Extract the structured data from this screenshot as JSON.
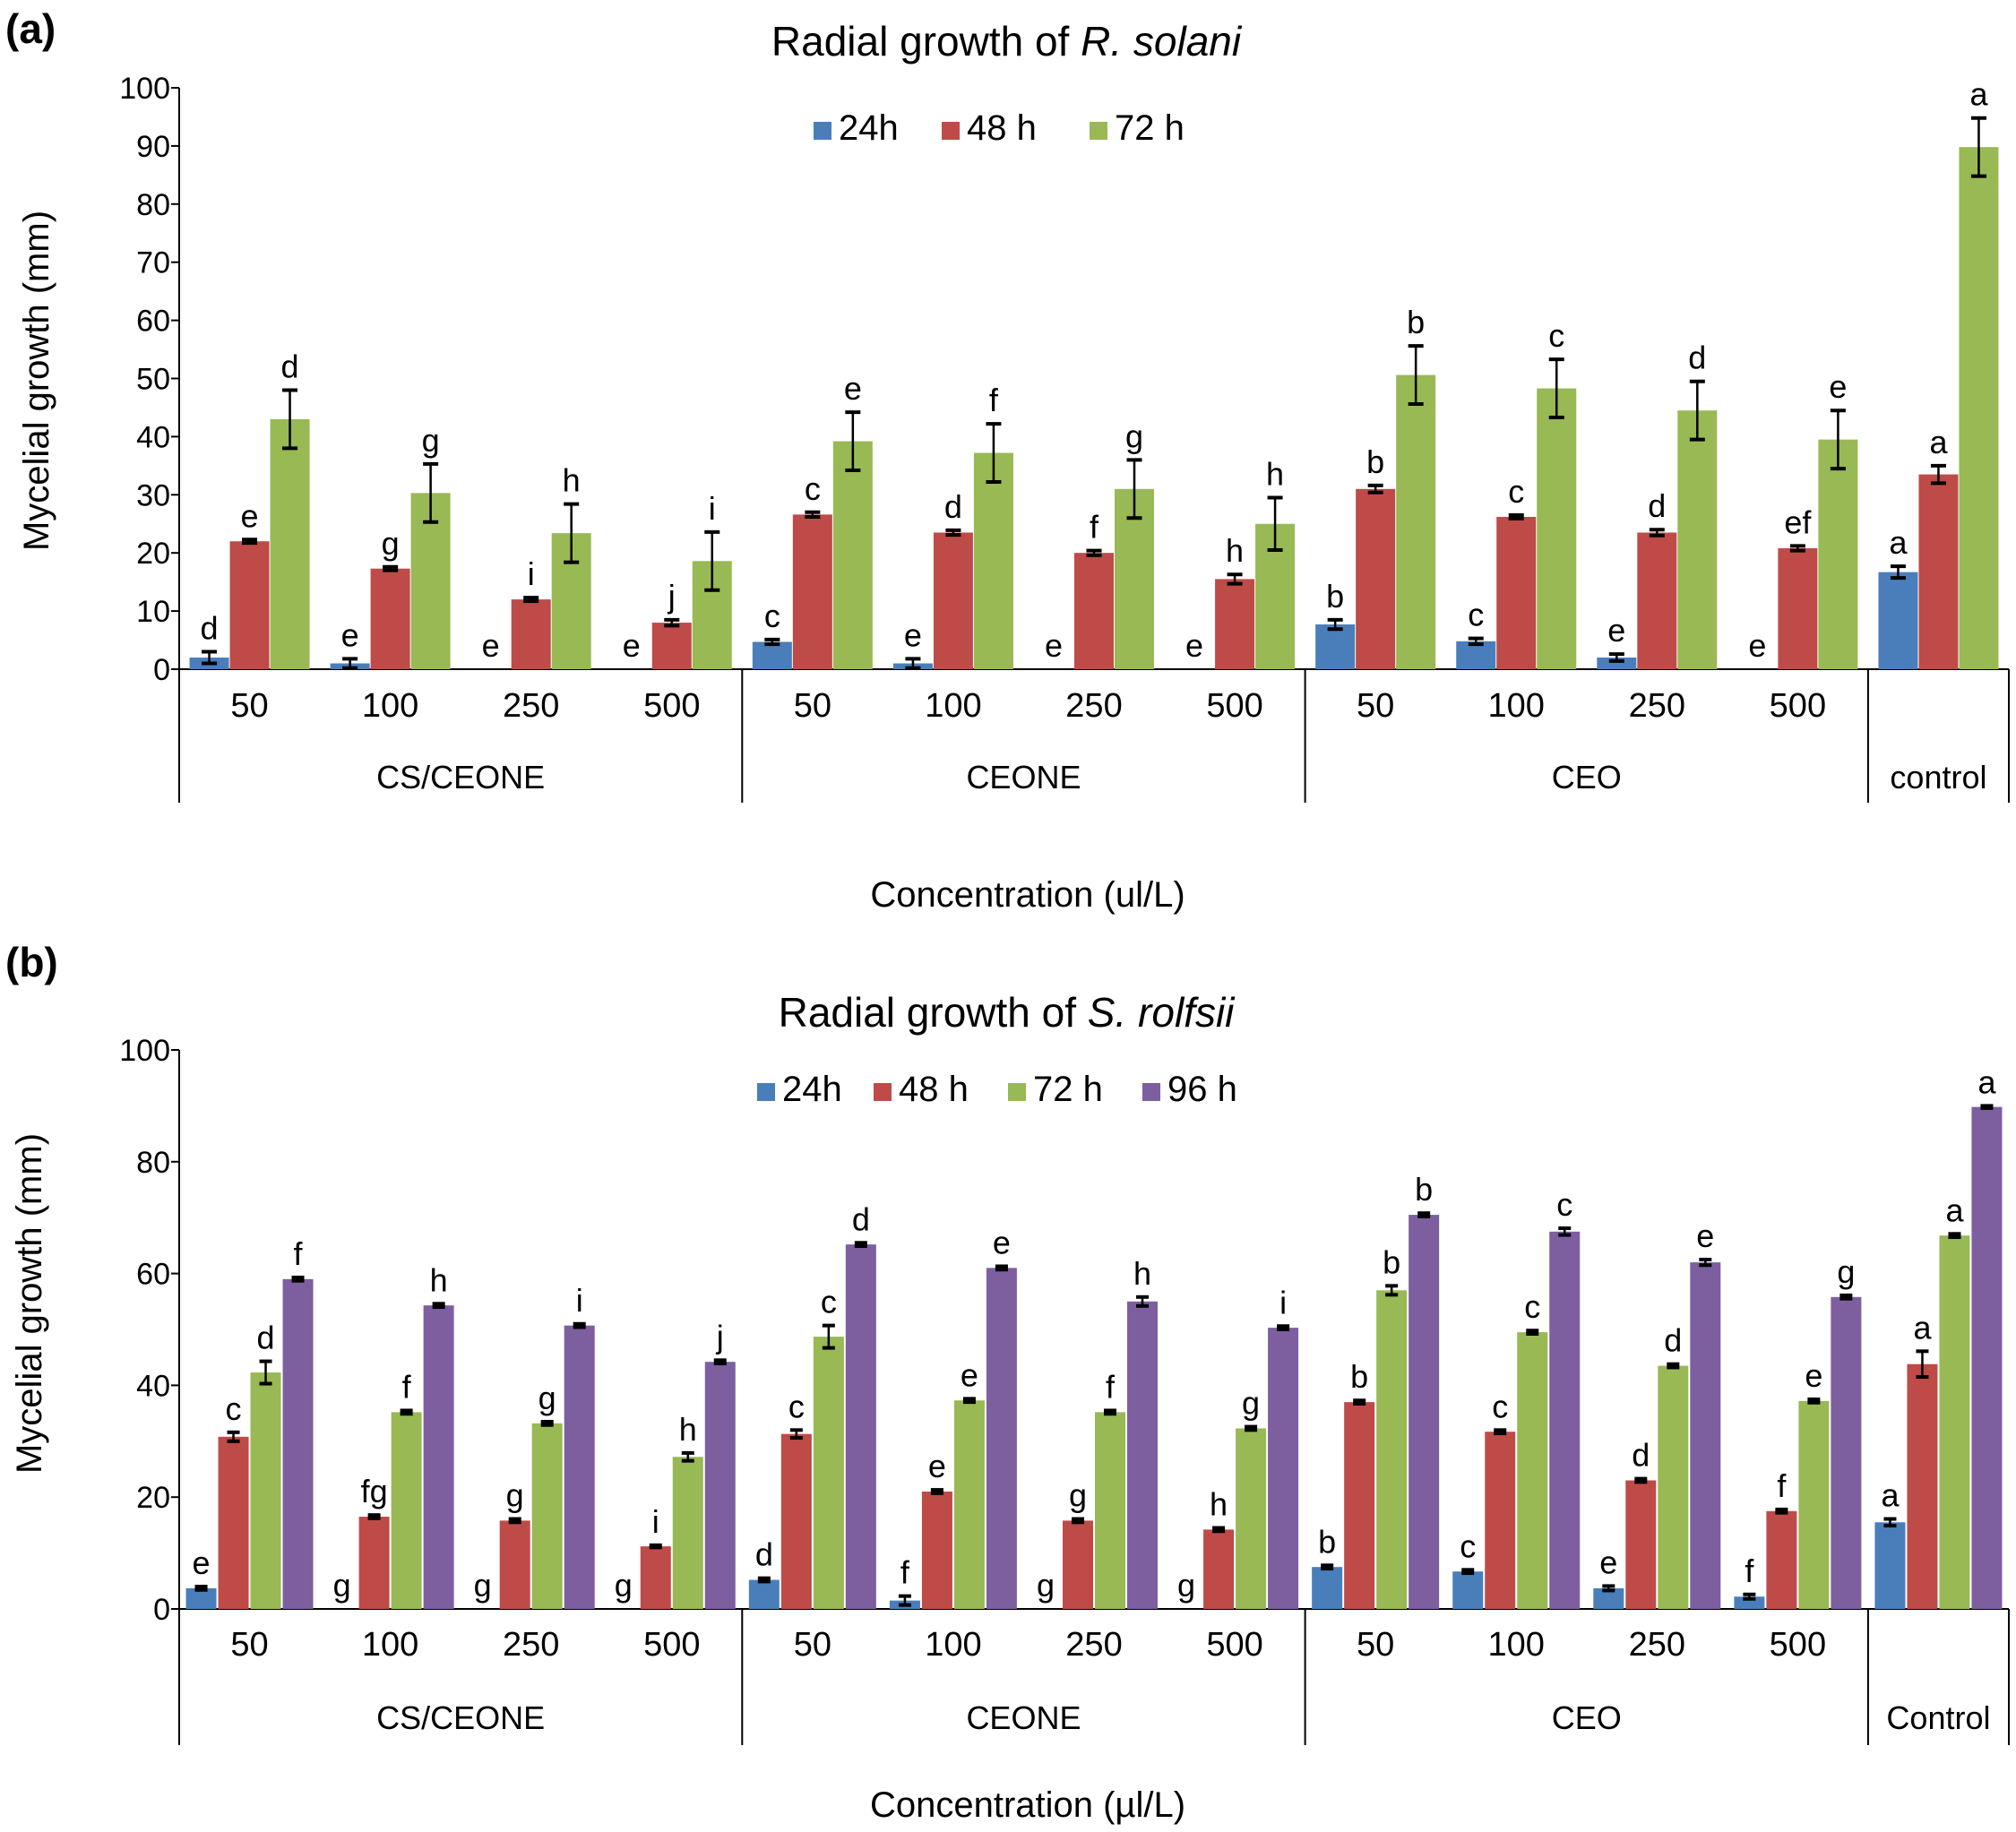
{
  "figure": {
    "panels": [
      {
        "label": "(a)",
        "title_prefix": "Radial growth of ",
        "title_organism": "R. solani",
        "xlabel": "Concentration (ul/L)",
        "ylabel": "Mycelial growth (mm)"
      },
      {
        "label": "(b)",
        "title_prefix": "Radial growth of ",
        "title_organism": "S. rolfsii",
        "xlabel": "Concentration (µl/L)",
        "ylabel": "Mycelial growth (mm)"
      }
    ]
  },
  "chart_data": [
    {
      "type": "bar",
      "title": "Radial growth of R. solani",
      "xlabel": "Concentration (ul/L)",
      "ylabel": "Mycelial growth (mm)",
      "ylim": [
        0,
        100
      ],
      "yticks": [
        0,
        10,
        20,
        30,
        40,
        50,
        60,
        70,
        80,
        90,
        100
      ],
      "legend_position": "top-center",
      "categories": [
        "50",
        "100",
        "250",
        "500",
        "50",
        "100",
        "250",
        "500",
        "50",
        "100",
        "250",
        "500",
        ""
      ],
      "groups": [
        {
          "name": "CS/CEONE",
          "count": 4
        },
        {
          "name": "CEONE",
          "count": 4
        },
        {
          "name": "CEO",
          "count": 4
        },
        {
          "name": "control",
          "count": 1
        }
      ],
      "series": [
        {
          "name": "24h",
          "color": "#4a7ebb",
          "values": [
            2,
            1,
            0,
            0,
            4.7,
            1,
            0,
            0,
            7.7,
            4.8,
            2,
            0,
            16.7
          ],
          "errors": [
            1,
            0.8,
            0,
            0,
            0.4,
            0.8,
            0,
            0,
            0.8,
            0.5,
            0.6,
            0,
            1
          ],
          "letters": [
            "d",
            "e",
            "e",
            "e",
            "c",
            "e",
            "e",
            "e",
            "b",
            "c",
            "e",
            "e",
            "a"
          ]
        },
        {
          "name": "48 h",
          "color": "#be4b48",
          "values": [
            22,
            17.3,
            12,
            8,
            26.6,
            23.5,
            20,
            15.5,
            31,
            26.2,
            23.5,
            20.8,
            33.5
          ],
          "errors": [
            0.3,
            0.3,
            0.3,
            0.5,
            0.4,
            0.4,
            0.4,
            0.8,
            0.6,
            0.3,
            0.5,
            0.4,
            1.5
          ],
          "letters": [
            "e",
            "g",
            "i",
            "j",
            "c",
            "d",
            "f",
            "h",
            "b",
            "c",
            "d",
            "ef",
            "a"
          ]
        },
        {
          "name": "72 h",
          "color": "#98b954",
          "values": [
            43,
            30.3,
            23.4,
            18.6,
            39.2,
            37.2,
            31,
            25,
            50.6,
            48.3,
            44.5,
            39.5,
            89.8
          ],
          "errors": [
            5,
            5,
            5,
            5,
            5,
            5,
            5,
            4.5,
            5,
            5,
            5,
            5,
            5
          ],
          "letters": [
            "d",
            "g",
            "h",
            "i",
            "e",
            "f",
            "g",
            "h",
            "b",
            "c",
            "d",
            "e",
            "a"
          ]
        }
      ]
    },
    {
      "type": "bar",
      "title": "Radial growth of S. rolfsii",
      "xlabel": "Concentration (µl/L)",
      "ylabel": "Mycelial growth (mm)",
      "ylim": [
        0,
        100
      ],
      "yticks": [
        0,
        20,
        40,
        60,
        80,
        100
      ],
      "legend_position": "top-center",
      "categories": [
        "50",
        "100",
        "250",
        "500",
        "50",
        "100",
        "250",
        "500",
        "50",
        "100",
        "250",
        "500",
        ""
      ],
      "groups": [
        {
          "name": "CS/CEONE",
          "count": 4
        },
        {
          "name": "CEONE",
          "count": 4
        },
        {
          "name": "CEO",
          "count": 4
        },
        {
          "name": "Control",
          "count": 1
        }
      ],
      "series": [
        {
          "name": "24h",
          "color": "#4a7ebb",
          "values": [
            3.7,
            0,
            0,
            0,
            5.2,
            1.5,
            0,
            0,
            7.5,
            6.7,
            3.7,
            2.2,
            15.5
          ],
          "errors": [
            0.3,
            0,
            0,
            0,
            0.3,
            0.8,
            0,
            0,
            0.3,
            0.3,
            0.4,
            0.4,
            0.6
          ],
          "letters": [
            "e",
            "g",
            "g",
            "g",
            "d",
            "f",
            "g",
            "g",
            "b",
            "c",
            "e",
            "f",
            "a"
          ]
        },
        {
          "name": "48 h",
          "color": "#be4b48",
          "values": [
            30.8,
            16.5,
            15.8,
            11.2,
            31.3,
            21,
            15.8,
            14.2,
            37,
            31.7,
            23,
            17.5,
            43.8
          ],
          "errors": [
            0.8,
            0.3,
            0.3,
            0.2,
            0.7,
            0.3,
            0.3,
            0.3,
            0.3,
            0.3,
            0.3,
            0.3,
            2.3
          ],
          "letters": [
            "c",
            "fg",
            "g",
            "i",
            "c",
            "e",
            "g",
            "h",
            "b",
            "c",
            "d",
            "f",
            "a"
          ]
        },
        {
          "name": "72 h",
          "color": "#98b954",
          "values": [
            42.3,
            35.2,
            33.2,
            27.2,
            48.7,
            37.3,
            35.2,
            32.3,
            57,
            49.5,
            43.5,
            37.2,
            66.8
          ],
          "errors": [
            2,
            0.3,
            0.3,
            0.7,
            2,
            0.3,
            0.3,
            0.3,
            0.8,
            0.3,
            0.3,
            0.3,
            0.3
          ],
          "letters": [
            "d",
            "f",
            "g",
            "h",
            "c",
            "e",
            "f",
            "g",
            "b",
            "c",
            "d",
            "e",
            "a"
          ]
        },
        {
          "name": "96 h",
          "color": "#7d5fa0",
          "values": [
            59,
            54.3,
            50.7,
            44.2,
            65.2,
            61,
            55,
            50.3,
            70.5,
            67.5,
            62,
            55.8,
            89.8
          ],
          "errors": [
            0.3,
            0.3,
            0.3,
            0.3,
            0.3,
            0.3,
            0.8,
            0.3,
            0.3,
            0.6,
            0.5,
            0.3,
            0.2
          ],
          "letters": [
            "f",
            "h",
            "i",
            "j",
            "d",
            "e",
            "h",
            "i",
            "b",
            "c",
            "e",
            "g",
            "a"
          ]
        }
      ]
    }
  ]
}
